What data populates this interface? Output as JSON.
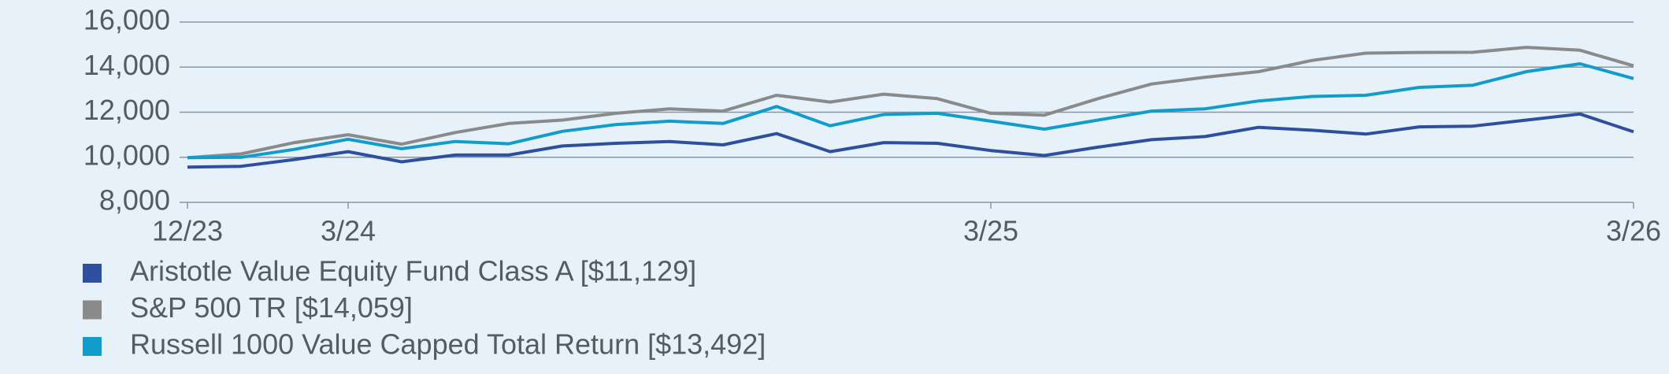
{
  "chart_data": {
    "type": "line",
    "categories": [
      "12/23",
      null,
      null,
      "3/24",
      null,
      null,
      null,
      null,
      null,
      null,
      null,
      null,
      null,
      null,
      null,
      "3/25",
      null,
      null,
      null,
      null,
      null,
      null,
      null,
      null,
      null,
      null,
      null,
      "3/26"
    ],
    "series": [
      {
        "name": "Aristotle Value Equity Fund Class A [$11,129]",
        "color": "#2e4f9e",
        "values": [
          9560,
          9600,
          9900,
          10250,
          9800,
          10100,
          10100,
          10500,
          10620,
          10700,
          10550,
          11050,
          10250,
          10650,
          10620,
          10300,
          10080,
          10450,
          10780,
          10920,
          11330,
          11200,
          11030,
          11350,
          11380,
          11650,
          11920,
          11129
        ]
      },
      {
        "name": "S&P 500 TR [$14,059]",
        "color": "#8a8a8a",
        "values": [
          9980,
          10150,
          10650,
          11000,
          10580,
          11100,
          11500,
          11650,
          11950,
          12150,
          12050,
          12750,
          12450,
          12800,
          12600,
          11950,
          11870,
          12600,
          13250,
          13550,
          13800,
          14300,
          14620,
          14650,
          14660,
          14880,
          14750,
          14059
        ]
      },
      {
        "name": "Russell 1000 Value Capped Total Return [$13,492]",
        "color": "#129ccc",
        "values": [
          9980,
          10000,
          10350,
          10800,
          10380,
          10700,
          10600,
          11150,
          11450,
          11600,
          11500,
          12250,
          11400,
          11900,
          11950,
          11600,
          11250,
          11650,
          12050,
          12150,
          12500,
          12700,
          12750,
          13100,
          13200,
          13800,
          14150,
          13492
        ]
      }
    ],
    "ylim": [
      8000,
      16000
    ],
    "yticks": [
      {
        "value": 8000,
        "label": "8,000"
      },
      {
        "value": 10000,
        "label": "10,000"
      },
      {
        "value": 12000,
        "label": "12,000"
      },
      {
        "value": 14000,
        "label": "14,000"
      },
      {
        "value": 16000,
        "label": "16,000"
      }
    ],
    "grid": true
  }
}
